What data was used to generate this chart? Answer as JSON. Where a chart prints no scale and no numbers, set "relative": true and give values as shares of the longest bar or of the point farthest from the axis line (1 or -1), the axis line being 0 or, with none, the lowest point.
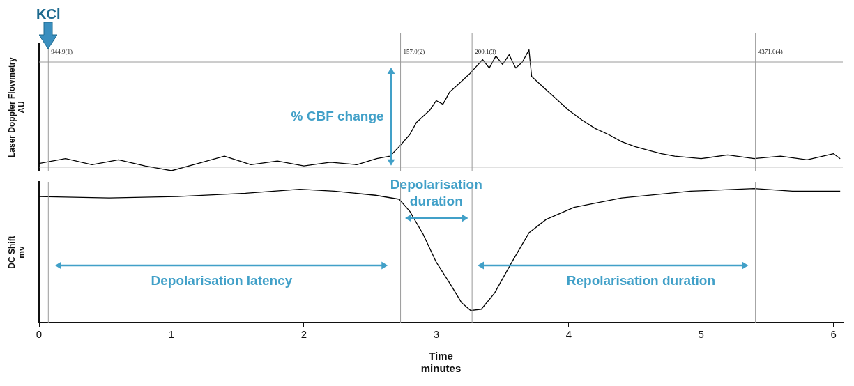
{
  "chart_data": [
    {
      "type": "line",
      "ylabel": "Laser Doppler Flowmetry\nAU",
      "relative": true,
      "xlim": [
        0,
        6.07
      ],
      "xticks": [
        0,
        1,
        2,
        3,
        4,
        5,
        6
      ],
      "tick_labels": false,
      "annotations": [
        "KCl",
        "% CBF change",
        "944.9(1)",
        "157.0(2)",
        "200.1(3)",
        "4371.0(4)"
      ],
      "ref_lines": [
        {
          "axis": "x",
          "value": 0.07
        },
        {
          "axis": "x",
          "value": 2.73
        },
        {
          "axis": "x",
          "value": 3.27
        },
        {
          "axis": "x",
          "value": 5.41
        },
        {
          "axis": "y",
          "value": 0.9
        },
        {
          "axis": "y",
          "value": 0.03
        }
      ],
      "series": [
        {
          "color": "#000000",
          "x": [
            0,
            0.2,
            0.4,
            0.6,
            0.8,
            1.0,
            1.2,
            1.4,
            1.6,
            1.8,
            2.0,
            2.2,
            2.4,
            2.55,
            2.65,
            2.72,
            2.8,
            2.85,
            2.9,
            2.95,
            3.0,
            3.05,
            3.1,
            3.15,
            3.2,
            3.25,
            3.3,
            3.35,
            3.4,
            3.45,
            3.5,
            3.55,
            3.6,
            3.65,
            3.7,
            3.72,
            3.8,
            3.9,
            4.0,
            4.1,
            4.2,
            4.3,
            4.4,
            4.5,
            4.6,
            4.7,
            4.8,
            5.0,
            5.2,
            5.4,
            5.6,
            5.8,
            6.0,
            6.05
          ],
          "values": [
            0.06,
            0.1,
            0.05,
            0.09,
            0.04,
            0.0,
            0.06,
            0.12,
            0.05,
            0.08,
            0.04,
            0.07,
            0.05,
            0.1,
            0.12,
            0.2,
            0.3,
            0.4,
            0.45,
            0.5,
            0.58,
            0.55,
            0.65,
            0.7,
            0.75,
            0.8,
            0.86,
            0.92,
            0.85,
            0.95,
            0.88,
            0.96,
            0.85,
            0.9,
            1.0,
            0.78,
            0.7,
            0.6,
            0.5,
            0.42,
            0.35,
            0.3,
            0.24,
            0.2,
            0.17,
            0.14,
            0.12,
            0.1,
            0.13,
            0.1,
            0.12,
            0.09,
            0.14,
            0.1
          ]
        }
      ]
    },
    {
      "type": "line",
      "ylabel": "DC Shift\nmv",
      "xlabel": "Time\nminutes",
      "relative": true,
      "xlim": [
        0,
        6.07
      ],
      "xticks": [
        0,
        1,
        2,
        3,
        4,
        5,
        6
      ],
      "tick_labels": "x",
      "annotations": [
        "Depolarisation duration",
        "Depolarisation latency",
        "Repolarisation duration"
      ],
      "ref_lines": [
        {
          "axis": "x",
          "value": 0.07
        },
        {
          "axis": "x",
          "value": 2.73
        },
        {
          "axis": "x",
          "value": 3.27
        },
        {
          "axis": "x",
          "value": 5.41
        }
      ],
      "series": [
        {
          "color": "#000000",
          "x": [
            0,
            0.53,
            1.04,
            1.56,
            1.97,
            2.23,
            2.54,
            2.72,
            2.8,
            2.9,
            3.0,
            3.11,
            3.19,
            3.26,
            3.34,
            3.44,
            3.57,
            3.7,
            3.83,
            4.04,
            4.4,
            4.92,
            5.4,
            5.69,
            6.05
          ],
          "values": [
            0.94,
            0.93,
            0.94,
            0.965,
            0.995,
            0.98,
            0.95,
            0.92,
            0.83,
            0.66,
            0.45,
            0.28,
            0.15,
            0.09,
            0.1,
            0.22,
            0.45,
            0.67,
            0.77,
            0.86,
            0.93,
            0.98,
            1.0,
            0.98,
            0.98
          ]
        }
      ]
    }
  ]
}
